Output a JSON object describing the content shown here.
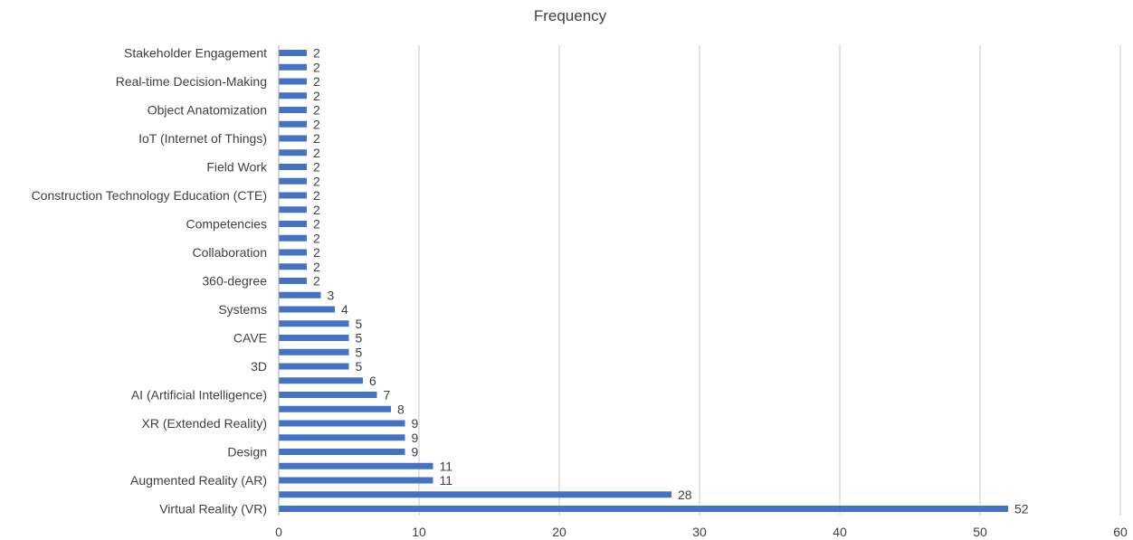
{
  "chart_data": {
    "type": "bar",
    "orientation": "horizontal",
    "title": "Frequency",
    "xlabel": "",
    "ylabel": "",
    "xlim": [
      0,
      60
    ],
    "x_ticks": [
      0,
      10,
      20,
      30,
      40,
      50,
      60
    ],
    "grid": "vertical",
    "legend": "none",
    "bar_color": "#4472C4",
    "categories_bottom_to_top": [
      "Virtual Reality (VR)",
      "",
      "Augmented Reality (AR)",
      "",
      "Design",
      "",
      "XR (Extended Reality)",
      "",
      "AI (Artificial Intelligence)",
      "",
      "3D",
      "",
      "CAVE",
      "",
      "Systems",
      "",
      "360-degree",
      "",
      "Collaboration",
      "",
      "Competencies",
      "",
      "Construction Technology Education (CTE)",
      "",
      "Field Work",
      "",
      "IoT (Internet of Things)",
      "",
      "Object Anatomization",
      "",
      "Real-time Decision-Making",
      "",
      "Stakeholder Engagement"
    ],
    "values_bottom_to_top": [
      52,
      28,
      11,
      11,
      9,
      9,
      9,
      8,
      7,
      6,
      5,
      5,
      5,
      5,
      4,
      3,
      2,
      2,
      2,
      2,
      2,
      2,
      2,
      2,
      2,
      2,
      2,
      2,
      2,
      2,
      2,
      2,
      2
    ]
  }
}
